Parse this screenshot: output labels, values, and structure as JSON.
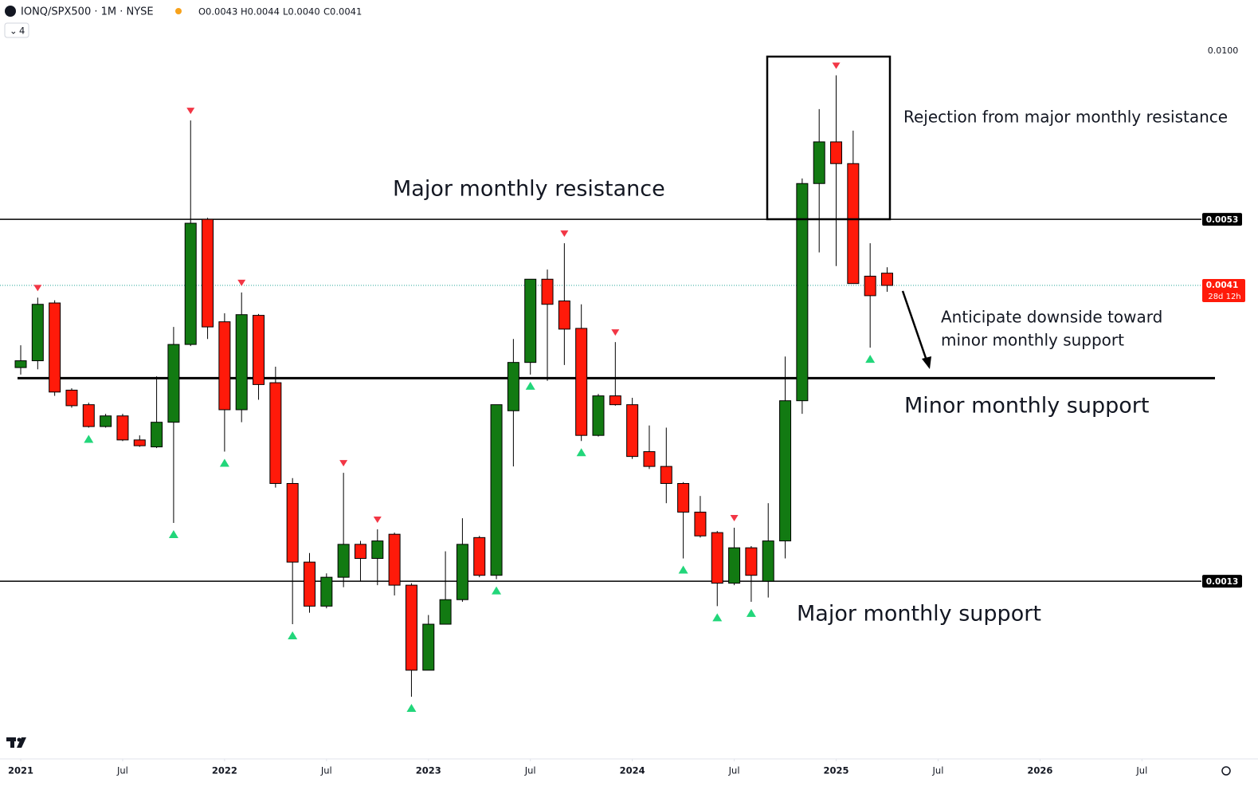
{
  "toolbar": {
    "symbol": "IONQ/SPX500 · 1M · NYSE",
    "ohlc": [
      "O0.0043",
      "H0.0044",
      "L0.0040",
      "C0.0041"
    ],
    "indicator_count": "4",
    "countdown": "28d 12h"
  },
  "chart_data": {
    "type": "candlestick",
    "log_scale": true,
    "open": [
      0.00298,
      0.00306,
      0.00383,
      0.00273,
      0.00258,
      0.00237,
      0.00247,
      0.00225,
      0.00219,
      0.00241,
      0.00326,
      0.0053,
      0.00356,
      0.00253,
      0.00365,
      0.00281,
      0.0019,
      0.0014,
      0.00118,
      0.00132,
      0.0015,
      0.00142,
      0.00156,
      0.00128,
      0.00092,
      0.0011,
      0.00121,
      0.00154,
      0.00133,
      0.00252,
      0.00304,
      0.0042,
      0.00386,
      0.00347,
      0.00229,
      0.00267,
      0.00258,
      0.00215,
      0.00203,
      0.0019,
      0.0017,
      0.00157,
      0.00129,
      0.00148,
      0.0013,
      0.00152,
      0.00262,
      0.00609,
      0.00716,
      0.00658,
      0.00425,
      0.0043
    ],
    "high": [
      0.00325,
      0.00391,
      0.00387,
      0.00275,
      0.0026,
      0.00249,
      0.00249,
      0.00229,
      0.00288,
      0.00349,
      0.00778,
      0.00533,
      0.00368,
      0.00399,
      0.00367,
      0.00299,
      0.00194,
      0.00145,
      0.00134,
      0.00198,
      0.00152,
      0.00159,
      0.00157,
      0.00129,
      0.00114,
      0.00146,
      0.00166,
      0.00155,
      0.00258,
      0.00333,
      0.0042,
      0.00436,
      0.00483,
      0.00381,
      0.00269,
      0.00329,
      0.00265,
      0.00238,
      0.00236,
      0.00191,
      0.00181,
      0.00158,
      0.0016,
      0.00149,
      0.00176,
      0.00311,
      0.00621,
      0.00813,
      0.00927,
      0.00748,
      0.00483,
      0.0044
    ],
    "low": [
      0.0029,
      0.00296,
      0.00267,
      0.00255,
      0.00236,
      0.00236,
      0.00224,
      0.00219,
      0.00218,
      0.00163,
      0.00324,
      0.00333,
      0.00215,
      0.00241,
      0.00263,
      0.00187,
      0.0011,
      0.00115,
      0.00117,
      0.00127,
      0.0013,
      0.00128,
      0.00123,
      0.00083,
      0.00092,
      0.0011,
      0.0012,
      0.00132,
      0.00131,
      0.00203,
      0.0029,
      0.00283,
      0.00301,
      0.00224,
      0.00228,
      0.00257,
      0.00209,
      0.00201,
      0.00176,
      0.00142,
      0.00154,
      0.00118,
      0.00128,
      0.0012,
      0.00122,
      0.00142,
      0.00249,
      0.00466,
      0.00442,
      0.00413,
      0.00322,
      0.004
    ],
    "close": [
      0.00306,
      0.00381,
      0.00271,
      0.00257,
      0.00237,
      0.00247,
      0.00225,
      0.0022,
      0.00241,
      0.00326,
      0.00522,
      0.00349,
      0.00253,
      0.00366,
      0.00279,
      0.0019,
      0.0014,
      0.00118,
      0.00132,
      0.0015,
      0.00142,
      0.00152,
      0.00128,
      0.00092,
      0.0011,
      0.00121,
      0.0015,
      0.00133,
      0.00258,
      0.00304,
      0.0042,
      0.00381,
      0.00346,
      0.00229,
      0.00267,
      0.00258,
      0.00211,
      0.00203,
      0.0019,
      0.0017,
      0.00155,
      0.00129,
      0.00148,
      0.00133,
      0.00152,
      0.00262,
      0.00609,
      0.00716,
      0.00658,
      0.00413,
      0.00394,
      0.0041
    ],
    "up_color": "#127a12",
    "down_color": "#ff1a0a",
    "pivot_highs": [
      1,
      10,
      13,
      19,
      21,
      32,
      35,
      42,
      48
    ],
    "pivot_lows": [
      4,
      9,
      12,
      16,
      23,
      28,
      30,
      33,
      39,
      41,
      43,
      50
    ],
    "ylim": [
      0.000656,
      0.01064
    ],
    "yticks": [
      {
        "value": 0.01,
        "label": "0.0100"
      }
    ],
    "xlim": [
      0,
      68
    ],
    "xticks": [
      {
        "value": 0,
        "label": "2021"
      },
      {
        "value": 6,
        "label": "Jul"
      },
      {
        "value": 12,
        "label": "2022"
      },
      {
        "value": 18,
        "label": "Jul"
      },
      {
        "value": 24,
        "label": "2023"
      },
      {
        "value": 30,
        "label": "Jul"
      },
      {
        "value": 36,
        "label": "2024"
      },
      {
        "value": 42,
        "label": "Jul"
      },
      {
        "value": 48,
        "label": "2025"
      },
      {
        "value": 54,
        "label": "Jul"
      },
      {
        "value": 60,
        "label": "2026"
      },
      {
        "value": 66,
        "label": "Jul"
      }
    ],
    "levels": [
      0.0053,
      0.0013
    ],
    "minor_support": 0.00286,
    "last_price": 0.0041,
    "annotations": [
      "Major monthly resistance",
      "Rejection from major monthly resistance",
      "Anticipate downside toward",
      "minor monthly support",
      "Minor monthly support",
      "Major monthly support"
    ]
  }
}
